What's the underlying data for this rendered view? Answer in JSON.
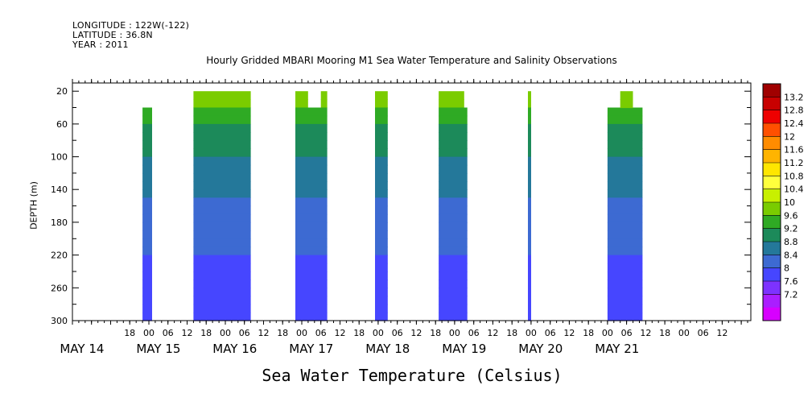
{
  "header": {
    "longitude": "LONGITUDE : 122W(-122)",
    "latitude": "LATITUDE : 36.8N",
    "year": "YEAR : 2011"
  },
  "chart_data": {
    "type": "heatmap",
    "title": "Hourly Gridded MBARI Mooring M1 Sea Water Temperature and Salinity Observations",
    "xlabel": "Sea Water Temperature (Celsius)",
    "ylabel": "DEPTH (m)",
    "x_ticks": {
      "hours": [
        "18",
        "00",
        "06",
        "12",
        "18",
        "00",
        "06",
        "12",
        "18",
        "00",
        "06",
        "12",
        "18",
        "00",
        "06",
        "12",
        "18",
        "00",
        "06",
        "12",
        "18",
        "00",
        "06",
        "12",
        "18",
        "00",
        "06",
        "12",
        "18",
        "00",
        "06",
        "12"
      ],
      "hours_offset": [
        18,
        24,
        30,
        36,
        42,
        48,
        54,
        60,
        66,
        72,
        78,
        84,
        90,
        96,
        102,
        108,
        114,
        120,
        126,
        132,
        138,
        144,
        150,
        156,
        162,
        168,
        174,
        180,
        186,
        192,
        198,
        204
      ],
      "days": [
        "MAY 14",
        "MAY 15",
        "MAY 16",
        "MAY 17",
        "MAY 18",
        "MAY 19",
        "MAY 20",
        "MAY 21"
      ],
      "days_offset": [
        0,
        24,
        48,
        72,
        96,
        120,
        144,
        168
      ]
    },
    "y_ticks": [
      20,
      60,
      100,
      140,
      180,
      220,
      260,
      300
    ],
    "ylim": [
      10,
      300
    ],
    "colorbar": {
      "labels": [
        "13.2",
        "12.8",
        "12.4",
        "12",
        "11.6",
        "11.2",
        "10.8",
        "10.4",
        "10",
        "9.6",
        "9.2",
        "8.8",
        "8.4",
        "8",
        "7.6",
        "7.2"
      ],
      "values": [
        13.2,
        12.8,
        12.4,
        12.0,
        11.6,
        11.2,
        10.8,
        10.4,
        10.0,
        9.6,
        9.2,
        8.8,
        8.4,
        8.0,
        7.6,
        7.2
      ],
      "colors": [
        "#a00000",
        "#c80000",
        "#ee0000",
        "#ff5000",
        "#ff8c00",
        "#ffb400",
        "#ffe600",
        "#ffff3c",
        "#c8f000",
        "#7acc00",
        "#2faa24",
        "#1c8a5a",
        "#24789a",
        "#3d6ad2",
        "#4646ff",
        "#7d32ff",
        "#aa1eff",
        "#d700ff"
      ]
    },
    "profile": {
      "depth": [
        20,
        60,
        100,
        140,
        180,
        220,
        260,
        300
      ],
      "temperature": [
        9.9,
        9.2,
        8.8,
        8.5,
        8.2,
        8.0,
        7.8,
        7.6
      ]
    },
    "segments": [
      {
        "start_hour": 22,
        "end_hour": 25,
        "top_depth": 40
      },
      {
        "start_hour": 38,
        "end_hour": 56,
        "top_depth": 20
      },
      {
        "start_hour": 70,
        "end_hour": 80,
        "top_depth": 20,
        "gap_start_hour": 74,
        "gap_end_hour": 78,
        "gap_depth": 40
      },
      {
        "start_hour": 95,
        "end_hour": 99,
        "top_depth": 20
      },
      {
        "start_hour": 115,
        "end_hour": 124,
        "top_depth": 20,
        "step_hour": 123,
        "step_depth": 40
      },
      {
        "start_hour": 143,
        "end_hour": 144,
        "top_depth": 20
      },
      {
        "start_hour": 168,
        "end_hour": 179,
        "top_depth": 40,
        "step_start_hour": 172,
        "step_end_hour": 176,
        "step_depth": 20
      }
    ]
  }
}
